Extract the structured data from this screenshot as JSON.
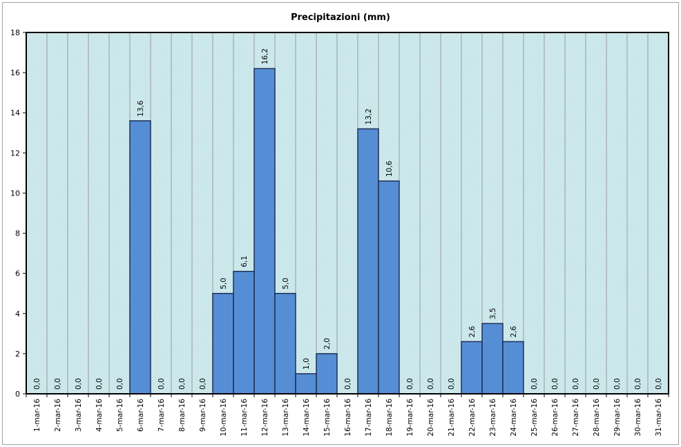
{
  "chart_data": {
    "type": "bar",
    "title": "Precipitazioni (mm)",
    "xlabel": "",
    "ylabel": "",
    "ylim": [
      0,
      18
    ],
    "yticks": [
      "0",
      "2",
      "4",
      "6",
      "8",
      "10",
      "12",
      "14",
      "16",
      "18"
    ],
    "grid": "vertical",
    "categories": [
      "1-mar-16",
      "2-mar-16",
      "3-mar-16",
      "4-mar-16",
      "5-mar-16",
      "6-mar-16",
      "7-mar-16",
      "8-mar-16",
      "9-mar-16",
      "10-mar-16",
      "11-mar-16",
      "12-mar-16",
      "13-mar-16",
      "14-mar-16",
      "15-mar-16",
      "16-mar-16",
      "17-mar-16",
      "18-mar-16",
      "19-mar-16",
      "20-mar-16",
      "21-mar-16",
      "22-mar-16",
      "23-mar-16",
      "24-mar-16",
      "25-mar-16",
      "26-mar-16",
      "27-mar-16",
      "28-mar-16",
      "29-mar-16",
      "30-mar-16",
      "31-mar-16"
    ],
    "values": [
      0,
      0,
      0,
      0,
      0,
      13.6,
      0,
      0,
      0,
      5.0,
      6.1,
      16.2,
      5.0,
      1.0,
      2.0,
      0,
      13.2,
      10.6,
      0,
      0,
      0,
      2.6,
      3.5,
      2.6,
      0,
      0,
      0,
      0,
      0,
      0,
      0
    ],
    "data_labels": [
      "0,0",
      "0,0",
      "0,0",
      "0,0",
      "0,0",
      "13,6",
      "0,0",
      "0,0",
      "0,0",
      "5,0",
      "6,1",
      "16,2",
      "5,0",
      "1,0",
      "2,0",
      "0,0",
      "13,2",
      "10,6",
      "0,0",
      "0,0",
      "0,0",
      "2,6",
      "3,5",
      "2,6",
      "0,0",
      "0,0",
      "0,0",
      "0,0",
      "0,0",
      "0,0",
      "0,0"
    ],
    "colors": {
      "bar_fill": "#558ed5",
      "bar_stroke": "#1f2f55",
      "plot_bg": "#d6eef0",
      "hatch": "#b9dde2",
      "grid": "#9a9a9a"
    }
  }
}
